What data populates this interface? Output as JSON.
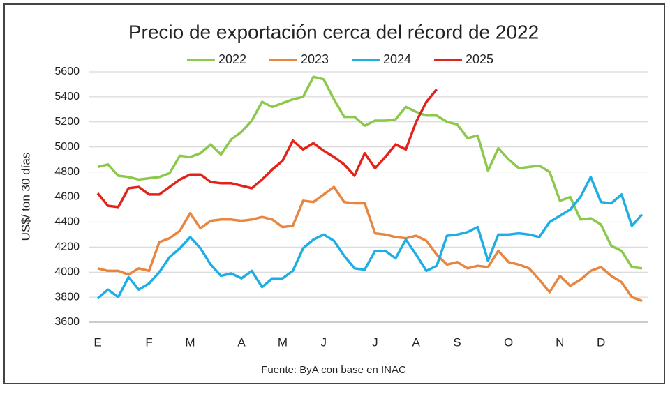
{
  "chart_data": {
    "type": "line",
    "title": "Precio de exportación cerca del récord de 2022",
    "y_label": "US$/ ton 30 días",
    "source": "Fuente: ByA con base en INAC",
    "x": [
      1,
      2,
      3,
      4,
      5,
      6,
      7,
      8,
      9,
      10,
      11,
      12,
      13,
      14,
      15,
      16,
      17,
      18,
      19,
      20,
      21,
      22,
      23,
      24,
      25,
      26,
      27,
      28,
      29,
      30,
      31,
      32,
      33,
      34,
      35,
      36,
      37,
      38,
      39,
      40,
      41,
      42,
      43,
      44,
      45,
      46,
      47,
      48,
      49,
      50,
      51,
      52,
      53,
      54
    ],
    "xlim": [
      1,
      54
    ],
    "xticks": [
      {
        "value": 1,
        "label": "E"
      },
      {
        "value": 6,
        "label": "F"
      },
      {
        "value": 10,
        "label": "M"
      },
      {
        "value": 15,
        "label": "A"
      },
      {
        "value": 19,
        "label": "M"
      },
      {
        "value": 23,
        "label": "J"
      },
      {
        "value": 28,
        "label": "J"
      },
      {
        "value": 32,
        "label": "A"
      },
      {
        "value": 36,
        "label": "S"
      },
      {
        "value": 41,
        "label": "O"
      },
      {
        "value": 46,
        "label": "N"
      },
      {
        "value": 50,
        "label": "D"
      }
    ],
    "ylim": [
      3600,
      5600
    ],
    "yticks": [
      3600,
      3800,
      4000,
      4200,
      4400,
      4600,
      4800,
      5000,
      5200,
      5400,
      5600
    ],
    "grid": true,
    "legend": "top",
    "series": [
      {
        "name": "2022",
        "color": "#8cc84b",
        "values": [
          4840,
          4860,
          4770,
          4760,
          4740,
          4750,
          4760,
          4790,
          4930,
          4920,
          4950,
          5020,
          4940,
          5060,
          5120,
          5210,
          5360,
          5320,
          5350,
          5380,
          5400,
          5560,
          5540,
          5380,
          5240,
          5240,
          5170,
          5210,
          5210,
          5220,
          5320,
          5280,
          5250,
          5250,
          5200,
          5180,
          5070,
          5090,
          4810,
          4990,
          4900,
          4830,
          4840,
          4850,
          4800,
          4570,
          4600,
          4420,
          4430,
          4380,
          4210,
          4170,
          4040,
          4030
        ]
      },
      {
        "name": "2023",
        "color": "#e8853f",
        "values": [
          4030,
          4010,
          4010,
          3980,
          4030,
          4010,
          4240,
          4270,
          4330,
          4470,
          4350,
          4410,
          4420,
          4420,
          4410,
          4420,
          4440,
          4420,
          4360,
          4370,
          4570,
          4560,
          4620,
          4680,
          4560,
          4550,
          4550,
          4310,
          4300,
          4280,
          4270,
          4290,
          4250,
          4140,
          4060,
          4080,
          4030,
          4050,
          4040,
          4170,
          4080,
          4060,
          4030,
          3940,
          3840,
          3970,
          3890,
          3940,
          4010,
          4040,
          3970,
          3920,
          3800,
          3770
        ]
      },
      {
        "name": "2024",
        "color": "#1eaee4",
        "values": [
          3790,
          3860,
          3800,
          3960,
          3860,
          3910,
          4000,
          4120,
          4190,
          4280,
          4190,
          4060,
          3970,
          3990,
          3950,
          4010,
          3880,
          3950,
          3950,
          4010,
          4190,
          4260,
          4300,
          4250,
          4130,
          4030,
          4020,
          4170,
          4170,
          4110,
          4260,
          4140,
          4010,
          4050,
          4290,
          4300,
          4320,
          4360,
          4090,
          4300,
          4300,
          4310,
          4300,
          4280,
          4400,
          4450,
          4500,
          4600,
          4760,
          4560,
          4550,
          4620,
          4370,
          4460
        ]
      },
      {
        "name": "2025",
        "color": "#e2231a",
        "values": [
          4630,
          4530,
          4520,
          4670,
          4680,
          4620,
          4620,
          4680,
          4740,
          4780,
          4780,
          4720,
          4710,
          4710,
          4690,
          4670,
          4740,
          4820,
          4890,
          5050,
          4980,
          5030,
          4970,
          4920,
          4860,
          4770,
          4950,
          4830,
          4920,
          5020,
          4980,
          5200,
          5360,
          5460,
          null,
          null,
          null,
          null,
          null,
          null,
          null,
          null,
          null,
          null,
          null,
          null,
          null,
          null,
          null,
          null,
          null,
          null,
          null,
          null
        ]
      }
    ]
  }
}
